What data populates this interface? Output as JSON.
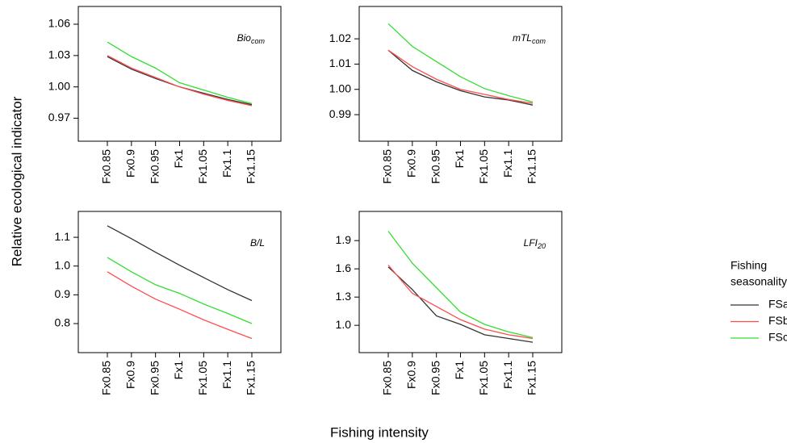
{
  "chart_data": [
    {
      "type": "line",
      "title": "Bio",
      "title_sub": "com",
      "categories": [
        "Fx0.85",
        "Fx0.9",
        "Fx0.95",
        "Fx1",
        "Fx1.05",
        "Fx1.1",
        "Fx1.15"
      ],
      "ylim": [
        0.948,
        1.077
      ],
      "yticks": [
        0.97,
        {
          "value": 1,
          "label": "1.00"
        },
        1.03,
        1.06
      ],
      "series": [
        {
          "name": "FSa",
          "color": "#333333",
          "values": [
            1.029,
            1.017,
            1.008,
            1.0,
            0.994,
            0.988,
            0.983
          ]
        },
        {
          "name": "FSb",
          "color": "#ff4d4d",
          "values": [
            1.03,
            1.018,
            1.009,
            1.0,
            0.993,
            0.987,
            0.982
          ]
        },
        {
          "name": "FSc",
          "color": "#33dd33",
          "values": [
            1.043,
            1.029,
            1.018,
            1.004,
            0.997,
            0.99,
            0.984
          ]
        }
      ]
    },
    {
      "type": "line",
      "title": "mTL",
      "title_sub": "com",
      "categories": [
        "Fx0.85",
        "Fx0.9",
        "Fx0.95",
        "Fx1",
        "Fx1.05",
        "Fx1.1",
        "Fx1.15"
      ],
      "ylim": [
        0.9795,
        1.0328
      ],
      "yticks": [
        0.99,
        {
          "value": 1,
          "label": "1.00"
        },
        1.01,
        1.02
      ],
      "series": [
        {
          "name": "FSa",
          "color": "#333333",
          "values": [
            1.0155,
            1.0075,
            1.003,
            0.9995,
            0.997,
            0.9958,
            0.9938
          ]
        },
        {
          "name": "FSb",
          "color": "#ff4d4d",
          "values": [
            1.0155,
            1.009,
            1.004,
            1.0,
            0.998,
            0.996,
            0.9945
          ]
        },
        {
          "name": "FSc",
          "color": "#33dd33",
          "values": [
            1.026,
            1.017,
            1.011,
            1.005,
            1.0003,
            0.9975,
            0.995
          ]
        }
      ]
    },
    {
      "type": "line",
      "title": "B/L",
      "categories": [
        "Fx0.85",
        "Fx0.9",
        "Fx0.95",
        "Fx1",
        "Fx1.05",
        "Fx1.1",
        "Fx1.15"
      ],
      "ylim": [
        0.699,
        1.19
      ],
      "yticks": [
        0.8,
        0.9,
        {
          "value": 1,
          "label": "1.0"
        },
        1.1
      ],
      "series": [
        {
          "name": "FSa",
          "color": "#333333",
          "values": [
            1.14,
            1.095,
            1.048,
            1.003,
            0.96,
            0.918,
            0.88
          ]
        },
        {
          "name": "FSb",
          "color": "#ff4d4d",
          "values": [
            0.98,
            0.93,
            0.885,
            0.85,
            0.813,
            0.78,
            0.748
          ]
        },
        {
          "name": "FSc",
          "color": "#33dd33",
          "values": [
            1.03,
            0.98,
            0.935,
            0.905,
            0.868,
            0.835,
            0.8
          ]
        }
      ]
    },
    {
      "type": "line",
      "title": "LFI",
      "title_sub": "20",
      "categories": [
        "Fx0.85",
        "Fx0.9",
        "Fx0.95",
        "Fx1",
        "Fx1.05",
        "Fx1.1",
        "Fx1.15"
      ],
      "ylim": [
        0.71,
        2.21
      ],
      "yticks": [
        {
          "value": 1,
          "label": "1.0"
        },
        1.3,
        1.6,
        1.9
      ],
      "series": [
        {
          "name": "FSa",
          "color": "#333333",
          "values": [
            1.62,
            1.38,
            1.1,
            1.01,
            0.9,
            0.86,
            0.82
          ]
        },
        {
          "name": "FSb",
          "color": "#ff4d4d",
          "values": [
            1.64,
            1.34,
            1.2,
            1.06,
            0.96,
            0.9,
            0.86
          ]
        },
        {
          "name": "FSc",
          "color": "#33dd33",
          "values": [
            2.0,
            1.66,
            1.4,
            1.14,
            1.01,
            0.93,
            0.87
          ]
        }
      ]
    }
  ],
  "xlabel": "Fishing intensity",
  "ylabel": "Relative ecological indicator",
  "legend_title": [
    "Fishing",
    "seasonality"
  ]
}
